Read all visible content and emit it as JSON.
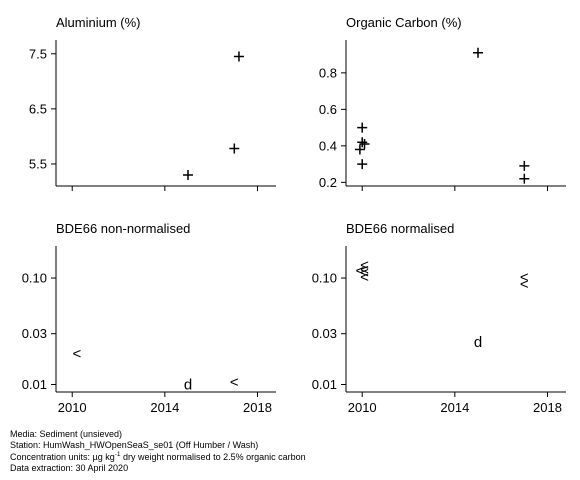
{
  "chart_data": [
    {
      "type": "scatter",
      "title": "Aluminium (%)",
      "scale": "linear",
      "ylim": [
        5.1,
        7.75
      ],
      "yticks": [
        5.5,
        6.5,
        7.5
      ],
      "ytick_labels": [
        "5.5",
        "6.5",
        "7.5"
      ],
      "show_xticks": false,
      "points": [
        {
          "x": 2015.0,
          "y": 5.3,
          "symbol": "+"
        },
        {
          "x": 2017.0,
          "y": 5.78,
          "symbol": "+"
        },
        {
          "x": 2017.2,
          "y": 7.45,
          "symbol": "+"
        }
      ]
    },
    {
      "type": "scatter",
      "title": "Organic Carbon (%)",
      "scale": "linear",
      "ylim": [
        0.18,
        0.98
      ],
      "yticks": [
        0.2,
        0.4,
        0.6,
        0.8
      ],
      "ytick_labels": [
        "0.2",
        "0.4",
        "0.6",
        "0.8"
      ],
      "show_xticks": false,
      "points": [
        {
          "x": 2010.0,
          "y": 0.5,
          "symbol": "+"
        },
        {
          "x": 2010.0,
          "y": 0.42,
          "symbol": "+"
        },
        {
          "x": 2010.1,
          "y": 0.41,
          "symbol": "+"
        },
        {
          "x": 2009.9,
          "y": 0.38,
          "symbol": "+"
        },
        {
          "x": 2010.0,
          "y": 0.3,
          "symbol": "+"
        },
        {
          "x": 2015.0,
          "y": 0.91,
          "symbol": "+"
        },
        {
          "x": 2017.0,
          "y": 0.29,
          "symbol": "+"
        },
        {
          "x": 2017.0,
          "y": 0.22,
          "symbol": "+"
        }
      ]
    },
    {
      "type": "scatter",
      "title": "BDE66 non-normalised",
      "scale": "log",
      "ylim": [
        0.0085,
        0.2
      ],
      "yticks": [
        0.01,
        0.03,
        0.1
      ],
      "ytick_labels": [
        "0.01",
        "0.03",
        "0.10"
      ],
      "show_xticks": true,
      "points": [
        {
          "x": 2010.2,
          "y": 0.0195,
          "symbol": "<"
        },
        {
          "x": 2015.0,
          "y": 0.01,
          "symbol": "d"
        },
        {
          "x": 2017.0,
          "y": 0.0105,
          "symbol": "<"
        }
      ]
    },
    {
      "type": "scatter",
      "title": "BDE66 normalised",
      "scale": "log",
      "ylim": [
        0.0085,
        0.2
      ],
      "yticks": [
        0.01,
        0.03,
        0.1
      ],
      "ytick_labels": [
        "0.01",
        "0.03",
        "0.10"
      ],
      "show_xticks": true,
      "points": [
        {
          "x": 2010.1,
          "y": 0.132,
          "symbol": "<"
        },
        {
          "x": 2010.1,
          "y": 0.12,
          "symbol": "<"
        },
        {
          "x": 2010.1,
          "y": 0.113,
          "symbol": "<"
        },
        {
          "x": 2010.1,
          "y": 0.102,
          "symbol": "<"
        },
        {
          "x": 2009.9,
          "y": 0.118,
          "symbol": "<"
        },
        {
          "x": 2015.0,
          "y": 0.025,
          "symbol": "d"
        },
        {
          "x": 2017.0,
          "y": 0.102,
          "symbol": "<"
        },
        {
          "x": 2017.0,
          "y": 0.088,
          "symbol": "<"
        }
      ]
    }
  ],
  "xaxis": {
    "xlim": [
      2009.3,
      2018.8
    ],
    "xticks": [
      2010,
      2014,
      2018
    ],
    "xtick_labels": [
      "2010",
      "2014",
      "2018"
    ]
  },
  "footer": {
    "media": "Media: Sediment (unsieved)",
    "station": "Station: HumWash_HWOpenSeaS_se01 (Off Humber / Wash)",
    "units_prefix": "Concentration units:  µg kg",
    "units_sup": "-1",
    "units_suffix": " dry weight normalised to 2.5% organic carbon",
    "extraction": "Data extraction: 30 April 2020"
  }
}
